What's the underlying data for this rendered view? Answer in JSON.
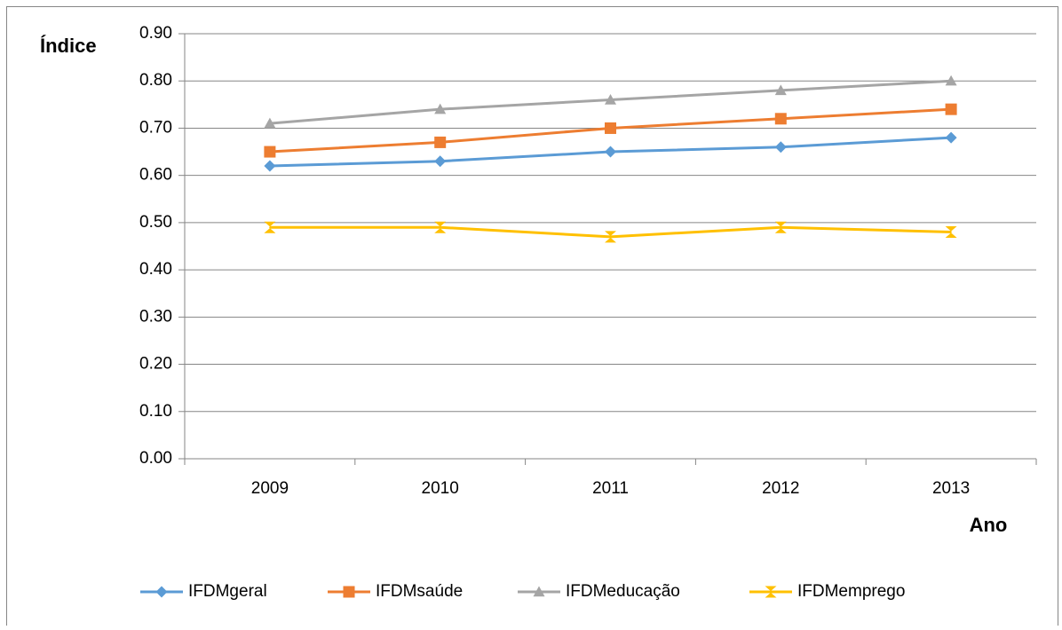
{
  "chart_data": {
    "type": "line",
    "y_label": "Índice",
    "x_label": "Ano",
    "categories": [
      "2009",
      "2010",
      "2011",
      "2012",
      "2013"
    ],
    "series": [
      {
        "name": "IFDMgeral",
        "color": "#5b9bd5",
        "marker": "diamond",
        "values": [
          0.62,
          0.63,
          0.65,
          0.66,
          0.68
        ]
      },
      {
        "name": "IFDMsaúde",
        "color": "#ed7d31",
        "marker": "square",
        "values": [
          0.65,
          0.67,
          0.7,
          0.72,
          0.74
        ]
      },
      {
        "name": "IFDMeducação",
        "color": "#a5a5a5",
        "marker": "triangle",
        "values": [
          0.71,
          0.74,
          0.76,
          0.78,
          0.8
        ]
      },
      {
        "name": "IFDMemprego",
        "color": "#ffc000",
        "marker": "hourglass",
        "values": [
          0.49,
          0.49,
          0.47,
          0.49,
          0.48
        ]
      }
    ],
    "ylim": [
      0,
      0.9
    ],
    "yticks": [
      {
        "value": 0,
        "label": "0.00"
      },
      {
        "value": 0.1,
        "label": "0.10"
      },
      {
        "value": 0.2,
        "label": "0.20"
      },
      {
        "value": 0.3,
        "label": "0.30"
      },
      {
        "value": 0.4,
        "label": "0.40"
      },
      {
        "value": 0.5,
        "label": "0.50"
      },
      {
        "value": 0.6,
        "label": "0.60"
      },
      {
        "value": 0.7,
        "label": "0.70"
      },
      {
        "value": 0.8,
        "label": "0.80"
      },
      {
        "value": 0.9,
        "label": "0.90"
      }
    ],
    "grid": true,
    "legend": "bottom"
  }
}
